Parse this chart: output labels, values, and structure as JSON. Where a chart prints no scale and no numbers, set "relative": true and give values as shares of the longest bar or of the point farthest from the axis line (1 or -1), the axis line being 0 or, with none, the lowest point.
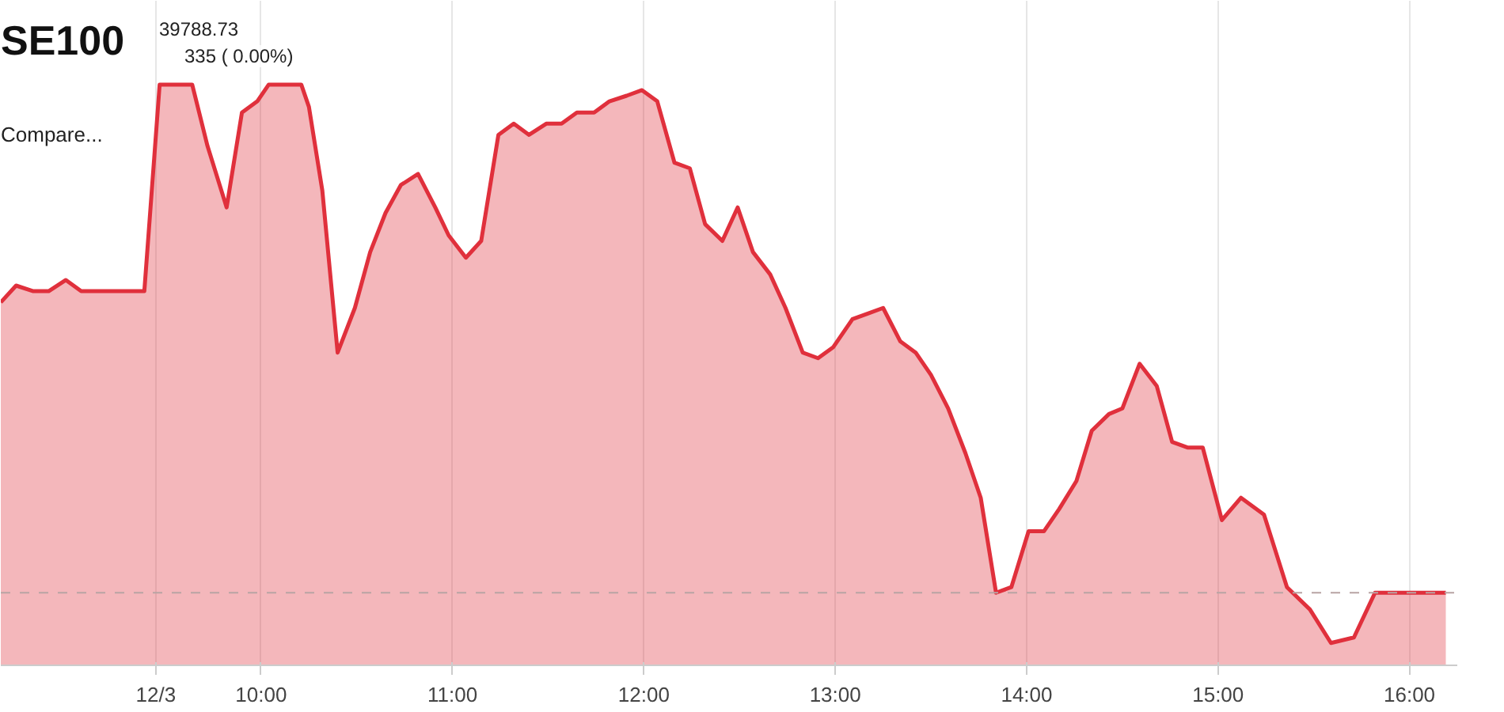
{
  "chart_data": {
    "type": "area",
    "title": "SE100",
    "annotations": [
      "39788.73",
      "335 ( 0.00%)",
      "Compare..."
    ],
    "relative": true,
    "color": "#e0303c",
    "grid": "x",
    "xlim": [
      8.64,
      16.25
    ],
    "xticks": [
      {
        "value": 9.45,
        "label": "12/3"
      },
      {
        "value": 10,
        "label": "10:00"
      },
      {
        "value": 11,
        "label": "11:00"
      },
      {
        "value": 12,
        "label": "12:00"
      },
      {
        "value": 13,
        "label": "13:00"
      },
      {
        "value": 14,
        "label": "14:00"
      },
      {
        "value": 15,
        "label": "15:00"
      },
      {
        "value": 16,
        "label": "16:00"
      }
    ],
    "ref_lines": [
      {
        "axis": "y",
        "value": 0.09,
        "color": "#b8a4a4",
        "line_style": "dashed"
      }
    ],
    "x": [
      8.64,
      8.72,
      8.81,
      8.89,
      8.98,
      9.06,
      9.14,
      9.23,
      9.31,
      9.39,
      9.47,
      9.64,
      9.72,
      9.82,
      9.9,
      9.98,
      10.04,
      10.21,
      10.25,
      10.32,
      10.4,
      10.49,
      10.57,
      10.65,
      10.73,
      10.82,
      10.91,
      10.98,
      11.07,
      11.15,
      11.24,
      11.32,
      11.4,
      11.49,
      11.57,
      11.65,
      11.74,
      11.82,
      11.91,
      11.99,
      12.07,
      12.16,
      12.24,
      12.32,
      12.41,
      12.49,
      12.57,
      12.66,
      12.74,
      12.83,
      12.91,
      12.99,
      13.09,
      13.17,
      13.25,
      13.34,
      13.42,
      13.5,
      13.59,
      13.68,
      13.76,
      13.84,
      13.92,
      14.01,
      14.09,
      14.17,
      14.26,
      14.34,
      14.43,
      14.5,
      14.59,
      14.68,
      14.76,
      14.84,
      14.92,
      15.02,
      15.12,
      15.24,
      15.36,
      15.48,
      15.59,
      15.71,
      15.82,
      15.94,
      16.07,
      16.19
    ],
    "values": [
      0.61,
      0.64,
      0.63,
      0.63,
      0.65,
      0.63,
      0.63,
      0.63,
      0.63,
      0.63,
      1.0,
      1.0,
      0.89,
      0.78,
      0.95,
      0.97,
      1.0,
      1.0,
      0.96,
      0.81,
      0.52,
      0.6,
      0.7,
      0.77,
      0.82,
      0.84,
      0.78,
      0.73,
      0.69,
      0.72,
      0.91,
      0.93,
      0.91,
      0.93,
      0.93,
      0.95,
      0.95,
      0.97,
      0.98,
      0.99,
      0.97,
      0.86,
      0.85,
      0.75,
      0.72,
      0.78,
      0.7,
      0.66,
      0.6,
      0.52,
      0.51,
      0.53,
      0.58,
      0.59,
      0.6,
      0.54,
      0.52,
      0.48,
      0.42,
      0.34,
      0.26,
      0.09,
      0.1,
      0.2,
      0.2,
      0.24,
      0.29,
      0.38,
      0.41,
      0.42,
      0.5,
      0.46,
      0.36,
      0.35,
      0.35,
      0.22,
      0.26,
      0.23,
      0.1,
      0.06,
      0.0,
      0.01,
      0.09,
      0.09,
      0.09,
      0.09
    ]
  }
}
